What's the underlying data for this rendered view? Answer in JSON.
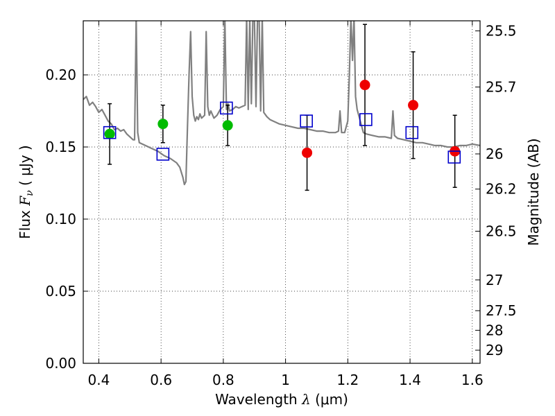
{
  "chart_data": {
    "type": "scatter",
    "xlabel": {
      "prefix": "Wavelength  ",
      "symbol": "λ",
      "unit": " (μm)"
    },
    "ylabel": {
      "prefix": "Flux  ",
      "symbol": "F",
      "sub": "ν",
      "unit": "  ( μJy )"
    },
    "y2label": "Magnitude (AB)",
    "xlim": [
      0.35,
      1.625
    ],
    "ylim": [
      0.0,
      0.2375
    ],
    "x_ticks": [
      {
        "value": 0.4,
        "label": "0.4"
      },
      {
        "value": 0.6,
        "label": "0.6"
      },
      {
        "value": 0.8,
        "label": "0.8"
      },
      {
        "value": 1.0,
        "label": "1"
      },
      {
        "value": 1.2,
        "label": "1.2"
      },
      {
        "value": 1.4,
        "label": "1.4"
      },
      {
        "value": 1.6,
        "label": "1.6"
      }
    ],
    "y_ticks": [
      {
        "value": 0.0,
        "label": "0.00"
      },
      {
        "value": 0.05,
        "label": "0.05"
      },
      {
        "value": 0.1,
        "label": "0.10"
      },
      {
        "value": 0.15,
        "label": "0.15"
      },
      {
        "value": 0.2,
        "label": "0.20"
      }
    ],
    "y2_ticks": [
      {
        "flux": 0.2305,
        "label": "25.5"
      },
      {
        "flux": 0.1916,
        "label": "25.7"
      },
      {
        "flux": 0.1452,
        "label": "26"
      },
      {
        "flux": 0.1208,
        "label": "26.2"
      },
      {
        "flux": 0.0916,
        "label": "26.5"
      },
      {
        "flux": 0.0578,
        "label": "27"
      },
      {
        "flux": 0.0365,
        "label": "27.5"
      },
      {
        "flux": 0.0229,
        "label": "28"
      },
      {
        "flux": 0.0091,
        "label": "29"
      }
    ],
    "grid": true,
    "colors": {
      "model": "#808080",
      "observed_blue": "#00bb00",
      "observed_red": "#ee0000",
      "synthetic": "#0000cc",
      "errorbar": "#000000"
    },
    "observed_points": [
      {
        "x": 0.435,
        "y": 0.159,
        "yerr": [
          0.021,
          0.021
        ],
        "color": "#00bb00"
      },
      {
        "x": 0.606,
        "y": 0.166,
        "yerr": [
          0.013,
          0.013
        ],
        "color": "#00bb00"
      },
      {
        "x": 0.814,
        "y": 0.165,
        "yerr": [
          0.014,
          0.014
        ],
        "color": "#00bb00"
      },
      {
        "x": 1.069,
        "y": 0.146,
        "yerr": [
          0.026,
          0.026
        ],
        "color": "#ee0000"
      },
      {
        "x": 1.255,
        "y": 0.193,
        "yerr": [
          0.042,
          0.042
        ],
        "color": "#ee0000"
      },
      {
        "x": 1.41,
        "y": 0.179,
        "yerr": [
          0.037,
          0.037
        ],
        "color": "#ee0000"
      },
      {
        "x": 1.544,
        "y": 0.147,
        "yerr": [
          0.025,
          0.025
        ],
        "color": "#ee0000"
      }
    ],
    "synthetic_points": [
      {
        "x": 0.435,
        "y": 0.16
      },
      {
        "x": 0.606,
        "y": 0.145
      },
      {
        "x": 0.81,
        "y": 0.177
      },
      {
        "x": 1.067,
        "y": 0.168
      },
      {
        "x": 1.258,
        "y": 0.169
      },
      {
        "x": 1.406,
        "y": 0.16
      },
      {
        "x": 1.542,
        "y": 0.143
      }
    ],
    "model_spectrum": {
      "x": [
        0.35,
        0.36,
        0.37,
        0.38,
        0.39,
        0.4,
        0.41,
        0.42,
        0.43,
        0.44,
        0.45,
        0.46,
        0.47,
        0.48,
        0.49,
        0.5,
        0.51,
        0.515,
        0.52,
        0.525,
        0.53,
        0.55,
        0.57,
        0.59,
        0.61,
        0.63,
        0.65,
        0.66,
        0.67,
        0.675,
        0.68,
        0.685,
        0.69,
        0.695,
        0.7,
        0.705,
        0.71,
        0.715,
        0.72,
        0.725,
        0.73,
        0.74,
        0.745,
        0.75,
        0.755,
        0.76,
        0.77,
        0.78,
        0.79,
        0.8,
        0.805,
        0.81,
        0.815,
        0.82,
        0.83,
        0.84,
        0.85,
        0.86,
        0.87,
        0.875,
        0.88,
        0.885,
        0.89,
        0.895,
        0.9,
        0.905,
        0.91,
        0.915,
        0.92,
        0.925,
        0.93,
        0.94,
        0.95,
        0.96,
        0.97,
        0.98,
        1.0,
        1.02,
        1.04,
        1.06,
        1.08,
        1.1,
        1.12,
        1.14,
        1.16,
        1.17,
        1.175,
        1.18,
        1.19,
        1.2,
        1.205,
        1.21,
        1.215,
        1.22,
        1.225,
        1.23,
        1.24,
        1.25,
        1.26,
        1.28,
        1.3,
        1.32,
        1.34,
        1.345,
        1.35,
        1.36,
        1.38,
        1.4,
        1.42,
        1.44,
        1.46,
        1.48,
        1.5,
        1.52,
        1.54,
        1.56,
        1.58,
        1.6,
        1.625
      ],
      "y": [
        0.183,
        0.185,
        0.179,
        0.181,
        0.178,
        0.174,
        0.176,
        0.172,
        0.168,
        0.166,
        0.162,
        0.163,
        0.161,
        0.162,
        0.159,
        0.157,
        0.155,
        0.155,
        0.24,
        0.16,
        0.153,
        0.151,
        0.149,
        0.147,
        0.144,
        0.142,
        0.139,
        0.136,
        0.129,
        0.124,
        0.126,
        0.165,
        0.2,
        0.23,
        0.185,
        0.172,
        0.168,
        0.171,
        0.169,
        0.173,
        0.17,
        0.172,
        0.23,
        0.178,
        0.172,
        0.175,
        0.17,
        0.172,
        0.176,
        0.178,
        0.24,
        0.176,
        0.18,
        0.175,
        0.176,
        0.178,
        0.177,
        0.178,
        0.179,
        0.24,
        0.176,
        0.24,
        0.18,
        0.24,
        0.24,
        0.178,
        0.24,
        0.24,
        0.175,
        0.24,
        0.174,
        0.171,
        0.169,
        0.168,
        0.167,
        0.166,
        0.165,
        0.164,
        0.163,
        0.163,
        0.162,
        0.161,
        0.161,
        0.16,
        0.16,
        0.161,
        0.175,
        0.16,
        0.16,
        0.168,
        0.2,
        0.24,
        0.21,
        0.24,
        0.185,
        0.176,
        0.168,
        0.16,
        0.159,
        0.158,
        0.157,
        0.157,
        0.156,
        0.175,
        0.158,
        0.156,
        0.155,
        0.154,
        0.153,
        0.153,
        0.152,
        0.151,
        0.151,
        0.15,
        0.15,
        0.151,
        0.151,
        0.152,
        0.151
      ]
    }
  }
}
